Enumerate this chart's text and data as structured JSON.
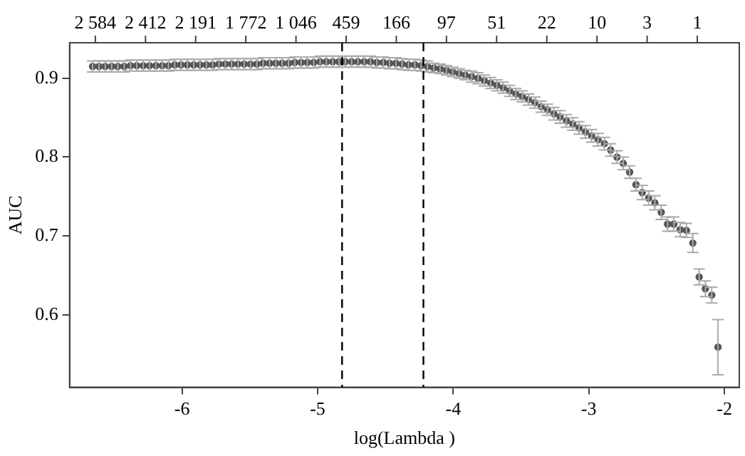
{
  "chart_data": {
    "type": "scatter",
    "xlabel": "log(Lambda )",
    "ylabel": "AUC",
    "xlim": [
      -6.83,
      -1.89
    ],
    "ylim": [
      0.508,
      0.945
    ],
    "xticks": [
      -6,
      -5,
      -4,
      -3,
      -2
    ],
    "yticks": [
      0.6,
      0.7,
      0.8,
      0.9
    ],
    "annotations": [
      {
        "text": "2 584",
        "x": -6.64
      },
      {
        "text": "2 412",
        "x": -6.27
      },
      {
        "text": "2 191",
        "x": -5.9
      },
      {
        "text": "1 772",
        "x": -5.53
      },
      {
        "text": "1 046",
        "x": -5.16
      },
      {
        "text": "459",
        "x": -4.79
      },
      {
        "text": "166",
        "x": -4.42
      },
      {
        "text": "97",
        "x": -4.05
      },
      {
        "text": "51",
        "x": -3.68
      },
      {
        "text": "22",
        "x": -3.31
      },
      {
        "text": "10",
        "x": -2.94
      },
      {
        "text": "3",
        "x": -2.57
      },
      {
        "text": "1",
        "x": -2.2
      }
    ],
    "grid": false,
    "marker": "circle",
    "ref_lines": [
      {
        "axis": "x",
        "value": -4.82,
        "line_style": "dashed",
        "color": "#000000"
      },
      {
        "axis": "x",
        "value": -4.22,
        "line_style": "dashed",
        "color": "#000000"
      }
    ],
    "series": [
      {
        "color": "#555555",
        "x": [
          -6.66,
          -6.613,
          -6.567,
          -6.52,
          -6.474,
          -6.427,
          -6.38,
          -6.334,
          -6.287,
          -6.241,
          -6.194,
          -6.147,
          -6.101,
          -6.054,
          -6.008,
          -5.961,
          -5.914,
          -5.868,
          -5.821,
          -5.775,
          -5.728,
          -5.681,
          -5.635,
          -5.588,
          -5.542,
          -5.495,
          -5.448,
          -5.402,
          -5.355,
          -5.309,
          -5.262,
          -5.215,
          -5.169,
          -5.122,
          -5.076,
          -5.029,
          -4.982,
          -4.936,
          -4.889,
          -4.843,
          -4.796,
          -4.749,
          -4.703,
          -4.656,
          -4.61,
          -4.563,
          -4.516,
          -4.47,
          -4.423,
          -4.377,
          -4.33,
          -4.283,
          -4.237,
          -4.19,
          -4.144,
          -4.097,
          -4.05,
          -4.004,
          -3.957,
          -3.911,
          -3.864,
          -3.817,
          -3.771,
          -3.724,
          -3.678,
          -3.631,
          -3.584,
          -3.538,
          -3.491,
          -3.445,
          -3.398,
          -3.351,
          -3.305,
          -3.258,
          -3.212,
          -3.165,
          -3.118,
          -3.072,
          -3.025,
          -2.979,
          -2.932,
          -2.885,
          -2.839,
          -2.792,
          -2.746,
          -2.699,
          -2.652,
          -2.606,
          -2.559,
          -2.513,
          -2.466,
          -2.419,
          -2.373,
          -2.326,
          -2.28,
          -2.233,
          -2.186,
          -2.14,
          -2.093,
          -2.047
        ],
        "values": [
          0.915,
          0.915,
          0.915,
          0.915,
          0.915,
          0.915,
          0.916,
          0.916,
          0.916,
          0.916,
          0.916,
          0.916,
          0.916,
          0.917,
          0.917,
          0.917,
          0.917,
          0.917,
          0.917,
          0.917,
          0.918,
          0.918,
          0.918,
          0.918,
          0.918,
          0.918,
          0.918,
          0.919,
          0.919,
          0.919,
          0.919,
          0.919,
          0.92,
          0.92,
          0.92,
          0.92,
          0.921,
          0.921,
          0.921,
          0.921,
          0.921,
          0.921,
          0.921,
          0.921,
          0.921,
          0.92,
          0.92,
          0.919,
          0.919,
          0.918,
          0.917,
          0.917,
          0.916,
          0.915,
          0.913,
          0.912,
          0.91,
          0.908,
          0.906,
          0.904,
          0.902,
          0.9,
          0.897,
          0.894,
          0.891,
          0.888,
          0.884,
          0.88,
          0.877,
          0.873,
          0.869,
          0.864,
          0.86,
          0.855,
          0.851,
          0.846,
          0.842,
          0.837,
          0.832,
          0.827,
          0.822,
          0.817,
          0.809,
          0.8,
          0.792,
          0.781,
          0.765,
          0.755,
          0.748,
          0.742,
          0.73,
          0.715,
          0.715,
          0.708,
          0.707,
          0.691,
          0.648,
          0.633,
          0.625,
          0.559
        ],
        "errors": [
          0.007,
          0.007,
          0.007,
          0.007,
          0.007,
          0.007,
          0.007,
          0.007,
          0.007,
          0.007,
          0.007,
          0.007,
          0.007,
          0.007,
          0.007,
          0.007,
          0.007,
          0.007,
          0.007,
          0.007,
          0.007,
          0.007,
          0.007,
          0.007,
          0.007,
          0.007,
          0.007,
          0.007,
          0.007,
          0.007,
          0.007,
          0.007,
          0.007,
          0.007,
          0.007,
          0.007,
          0.007,
          0.007,
          0.007,
          0.007,
          0.007,
          0.007,
          0.007,
          0.007,
          0.007,
          0.007,
          0.007,
          0.007,
          0.007,
          0.007,
          0.007,
          0.007,
          0.007,
          0.007,
          0.006,
          0.006,
          0.006,
          0.006,
          0.006,
          0.006,
          0.007,
          0.007,
          0.007,
          0.007,
          0.007,
          0.007,
          0.007,
          0.007,
          0.007,
          0.007,
          0.007,
          0.007,
          0.007,
          0.008,
          0.008,
          0.008,
          0.008,
          0.008,
          0.008,
          0.008,
          0.008,
          0.008,
          0.008,
          0.008,
          0.008,
          0.008,
          0.008,
          0.009,
          0.009,
          0.009,
          0.009,
          0.009,
          0.009,
          0.009,
          0.009,
          0.012,
          0.01,
          0.01,
          0.01,
          0.035
        ]
      }
    ]
  }
}
